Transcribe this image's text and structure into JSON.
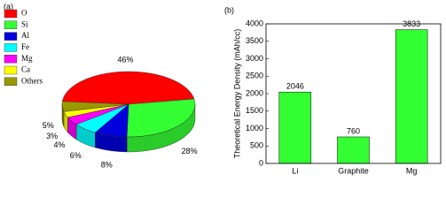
{
  "chart_data": [
    {
      "type": "pie3d",
      "panel": "(a)",
      "categories": [
        "O",
        "Si",
        "Al",
        "Fe",
        "Mg",
        "Ca",
        "Others"
      ],
      "values": [
        46,
        28,
        8,
        6,
        4,
        3,
        5
      ],
      "value_labels": [
        "46%",
        "28%",
        "8%",
        "6%",
        "4%",
        "3%",
        "5%"
      ],
      "colors": [
        "#ff0000",
        "#33ff33",
        "#0000dd",
        "#00ffff",
        "#ff00ff",
        "#ffff00",
        "#999900"
      ],
      "legend": "upper left"
    },
    {
      "type": "bar",
      "panel": "(b)",
      "y_label": "Theoretical Energy Density (mAh/cc)",
      "categories": [
        "Li",
        "Graphite",
        "Mg"
      ],
      "values": [
        2046,
        760,
        3833
      ],
      "color": "#33ff33",
      "ylim": [
        0,
        4000
      ],
      "yticks": [
        0,
        500,
        1000,
        1500,
        2000,
        2500,
        3000,
        3500,
        4000
      ]
    }
  ]
}
